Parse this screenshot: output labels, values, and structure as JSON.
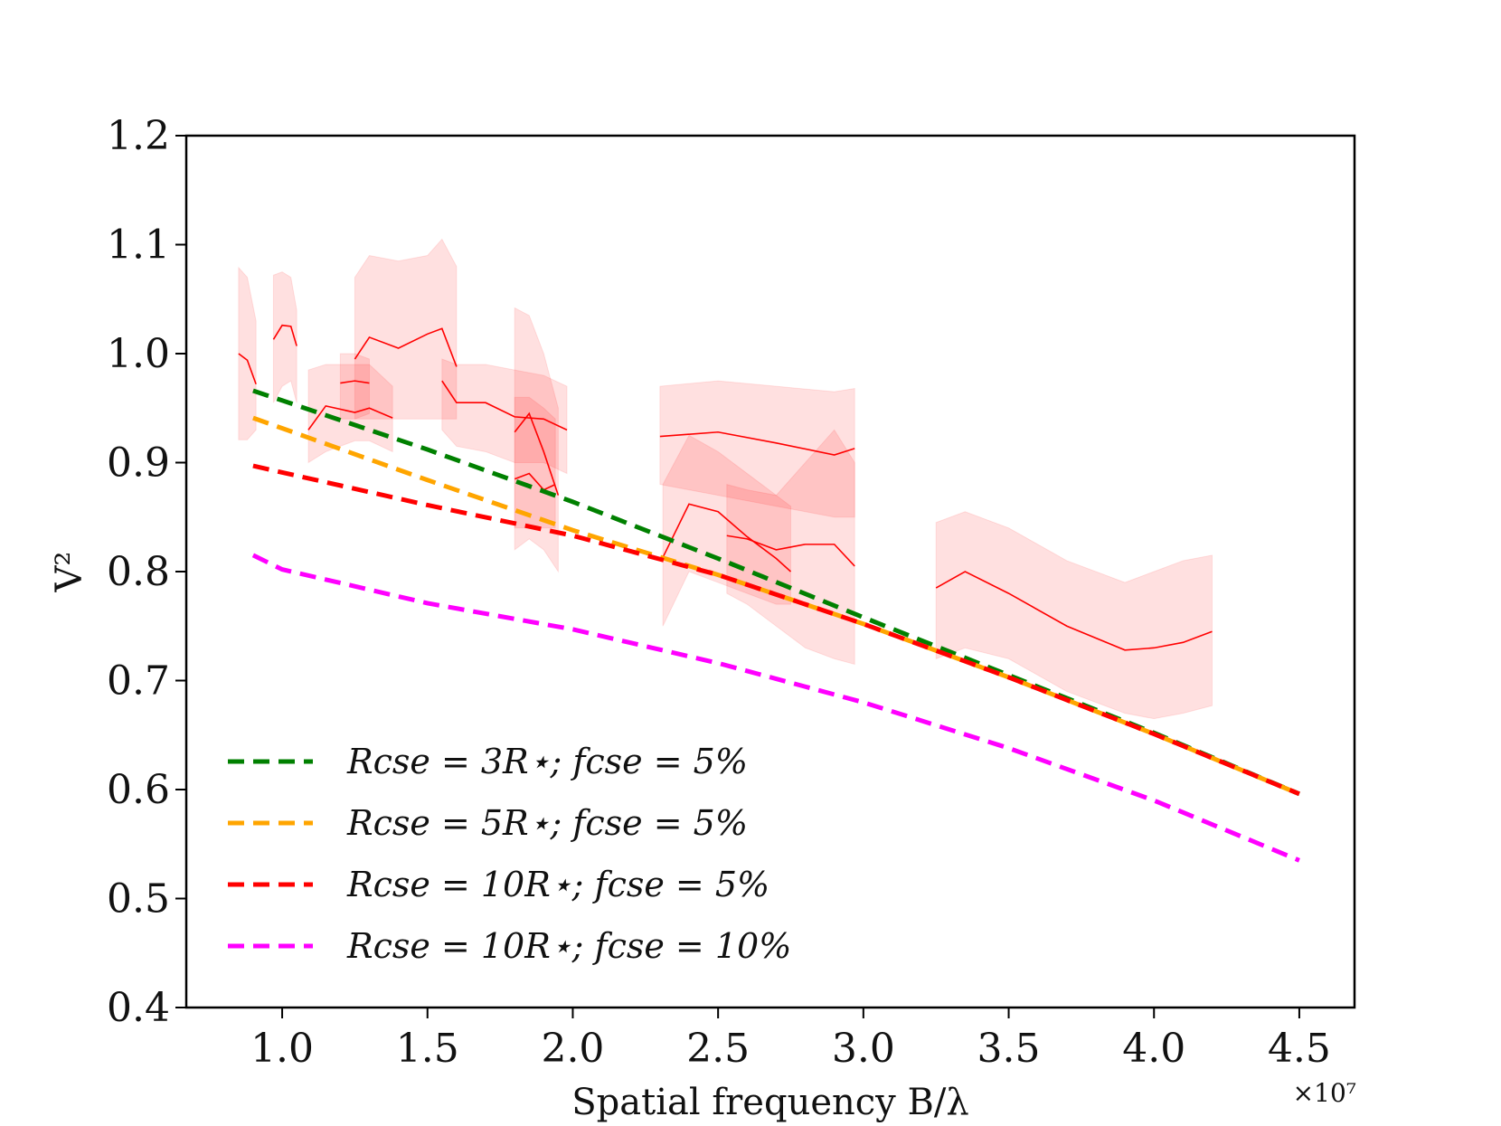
{
  "chart_data": {
    "type": "line",
    "title": "",
    "xlabel": "Spatial frequency B/λ",
    "ylabel": "V²",
    "x_offset_label": "×10⁷",
    "xlim": [
      0.67,
      4.69
    ],
    "ylim": [
      0.4,
      1.2
    ],
    "x_ticks": [
      1.0,
      1.5,
      2.0,
      2.5,
      3.0,
      3.5,
      4.0,
      4.5
    ],
    "x_tick_labels": [
      "1.0",
      "1.5",
      "2.0",
      "2.5",
      "3.0",
      "3.5",
      "4.0",
      "4.5"
    ],
    "y_ticks": [
      0.4,
      0.5,
      0.6,
      0.7,
      0.8,
      0.9,
      1.0,
      1.1,
      1.2
    ],
    "y_tick_labels": [
      "0.4",
      "0.5",
      "0.6",
      "0.7",
      "0.8",
      "0.9",
      "1.0",
      "1.1",
      "1.2"
    ],
    "grid": false,
    "legend_position": "lower-left",
    "series": [
      {
        "name": "R_cse = 3R⋆; f_cse = 5%",
        "legend": "Rcse = 3R⋆; fcse = 5%",
        "color": "#008000",
        "style": "dashed",
        "x": [
          0.9,
          1.5,
          2.0,
          2.5,
          3.0,
          3.5,
          4.0,
          4.5
        ],
        "y": [
          0.966,
          0.912,
          0.864,
          0.812,
          0.758,
          0.705,
          0.652,
          0.596
        ]
      },
      {
        "name": "R_cse = 5R⋆; f_cse = 5%",
        "legend": "Rcse = 5R⋆; fcse = 5%",
        "color": "#FFA500",
        "style": "dashed",
        "x": [
          0.9,
          1.5,
          2.0,
          2.5,
          3.0,
          3.5,
          4.0,
          4.5
        ],
        "y": [
          0.941,
          0.884,
          0.838,
          0.797,
          0.752,
          0.703,
          0.651,
          0.596
        ]
      },
      {
        "name": "R_cse = 10R⋆; f_cse = 5%",
        "legend": "Rcse = 10R⋆; fcse = 5%",
        "color": "#FF0000",
        "style": "dashed",
        "x": [
          0.9,
          1.5,
          2.0,
          2.5,
          3.0,
          3.5,
          4.0,
          4.5
        ],
        "y": [
          0.897,
          0.861,
          0.833,
          0.797,
          0.752,
          0.703,
          0.651,
          0.596
        ]
      },
      {
        "name": "R_cse = 10R⋆; f_cse = 10%",
        "legend": "Rcse = 10R⋆; fcse = 10%",
        "color": "#FF00FF",
        "style": "dashed",
        "x": [
          0.9,
          1.0,
          1.5,
          2.0,
          2.5,
          3.0,
          3.5,
          4.0,
          4.5
        ],
        "y": [
          0.815,
          0.802,
          0.771,
          0.747,
          0.716,
          0.68,
          0.638,
          0.59,
          0.535
        ]
      }
    ],
    "observations": [
      {
        "x": [
          0.85,
          0.88,
          0.91
        ],
        "y": [
          1.0,
          0.994,
          0.972
        ],
        "lower": [
          0.921,
          0.921,
          0.93
        ],
        "upper": [
          1.079,
          1.07,
          1.03
        ]
      },
      {
        "x": [
          0.97,
          1.0,
          1.03,
          1.05
        ],
        "y": [
          1.013,
          1.026,
          1.025,
          1.007
        ],
        "lower": [
          0.955,
          0.97,
          0.975,
          0.955
        ],
        "upper": [
          1.072,
          1.075,
          1.07,
          1.04
        ]
      },
      {
        "x": [
          1.09,
          1.15,
          1.25,
          1.3,
          1.38
        ],
        "y": [
          0.93,
          0.952,
          0.946,
          0.95,
          0.941
        ],
        "lower": [
          0.9,
          0.91,
          0.92,
          0.92,
          0.91
        ],
        "upper": [
          0.985,
          0.99,
          0.99,
          0.99,
          0.97
        ]
      },
      {
        "x": [
          1.2,
          1.25,
          1.3
        ],
        "y": [
          0.973,
          0.975,
          0.973
        ],
        "lower": [
          0.94,
          0.94,
          0.945
        ],
        "upper": [
          1.0,
          1.0,
          0.995
        ]
      },
      {
        "x": [
          1.25,
          1.3,
          1.4,
          1.5,
          1.55,
          1.6
        ],
        "y": [
          0.995,
          1.015,
          1.005,
          1.018,
          1.023,
          0.988
        ],
        "lower": [
          0.94,
          0.94,
          0.94,
          0.94,
          0.94,
          0.94
        ],
        "upper": [
          1.07,
          1.09,
          1.085,
          1.09,
          1.105,
          1.08
        ]
      },
      {
        "x": [
          1.55,
          1.6,
          1.7,
          1.8,
          1.9,
          1.98
        ],
        "y": [
          0.975,
          0.955,
          0.955,
          0.942,
          0.94,
          0.93
        ],
        "lower": [
          0.93,
          0.915,
          0.91,
          0.9,
          0.9,
          0.89
        ],
        "upper": [
          0.995,
          0.99,
          0.99,
          0.985,
          0.98,
          0.97
        ]
      },
      {
        "x": [
          1.8,
          1.85,
          1.9,
          1.95
        ],
        "y": [
          0.928,
          0.945,
          0.91,
          0.87
        ],
        "lower": [
          0.82,
          0.83,
          0.82,
          0.8
        ],
        "upper": [
          1.042,
          1.035,
          1.0,
          0.95
        ]
      },
      {
        "x": [
          1.8,
          1.85,
          1.9,
          1.94
        ],
        "y": [
          0.885,
          0.89,
          0.875,
          0.88
        ],
        "lower": [
          0.84,
          0.84,
          0.84,
          0.84
        ],
        "upper": [
          0.96,
          0.96,
          0.95,
          0.94
        ]
      },
      {
        "x": [
          2.3,
          2.5,
          2.7,
          2.9,
          2.97
        ],
        "y": [
          0.924,
          0.928,
          0.918,
          0.907,
          0.913
        ],
        "lower": [
          0.88,
          0.87,
          0.86,
          0.85,
          0.85
        ],
        "upper": [
          0.97,
          0.975,
          0.97,
          0.965,
          0.968
        ]
      },
      {
        "x": [
          2.31,
          2.4,
          2.5,
          2.6,
          2.7,
          2.75
        ],
        "y": [
          0.813,
          0.862,
          0.855,
          0.832,
          0.812,
          0.8
        ],
        "lower": [
          0.75,
          0.8,
          0.79,
          0.78,
          0.77,
          0.77
        ],
        "upper": [
          0.88,
          0.925,
          0.91,
          0.89,
          0.87,
          0.86
        ]
      },
      {
        "x": [
          2.53,
          2.6,
          2.7,
          2.8,
          2.9,
          2.97
        ],
        "y": [
          0.833,
          0.83,
          0.82,
          0.825,
          0.825,
          0.805
        ],
        "lower": [
          0.78,
          0.77,
          0.75,
          0.73,
          0.72,
          0.715
        ],
        "upper": [
          0.88,
          0.875,
          0.87,
          0.9,
          0.93,
          0.9
        ]
      },
      {
        "x": [
          3.25,
          3.35,
          3.5,
          3.7,
          3.9,
          4.0,
          4.1,
          4.2
        ],
        "y": [
          0.785,
          0.8,
          0.78,
          0.75,
          0.728,
          0.73,
          0.735,
          0.745
        ],
        "lower": [
          0.72,
          0.73,
          0.72,
          0.69,
          0.67,
          0.665,
          0.67,
          0.677
        ],
        "upper": [
          0.845,
          0.855,
          0.84,
          0.81,
          0.79,
          0.8,
          0.81,
          0.815
        ]
      }
    ]
  }
}
